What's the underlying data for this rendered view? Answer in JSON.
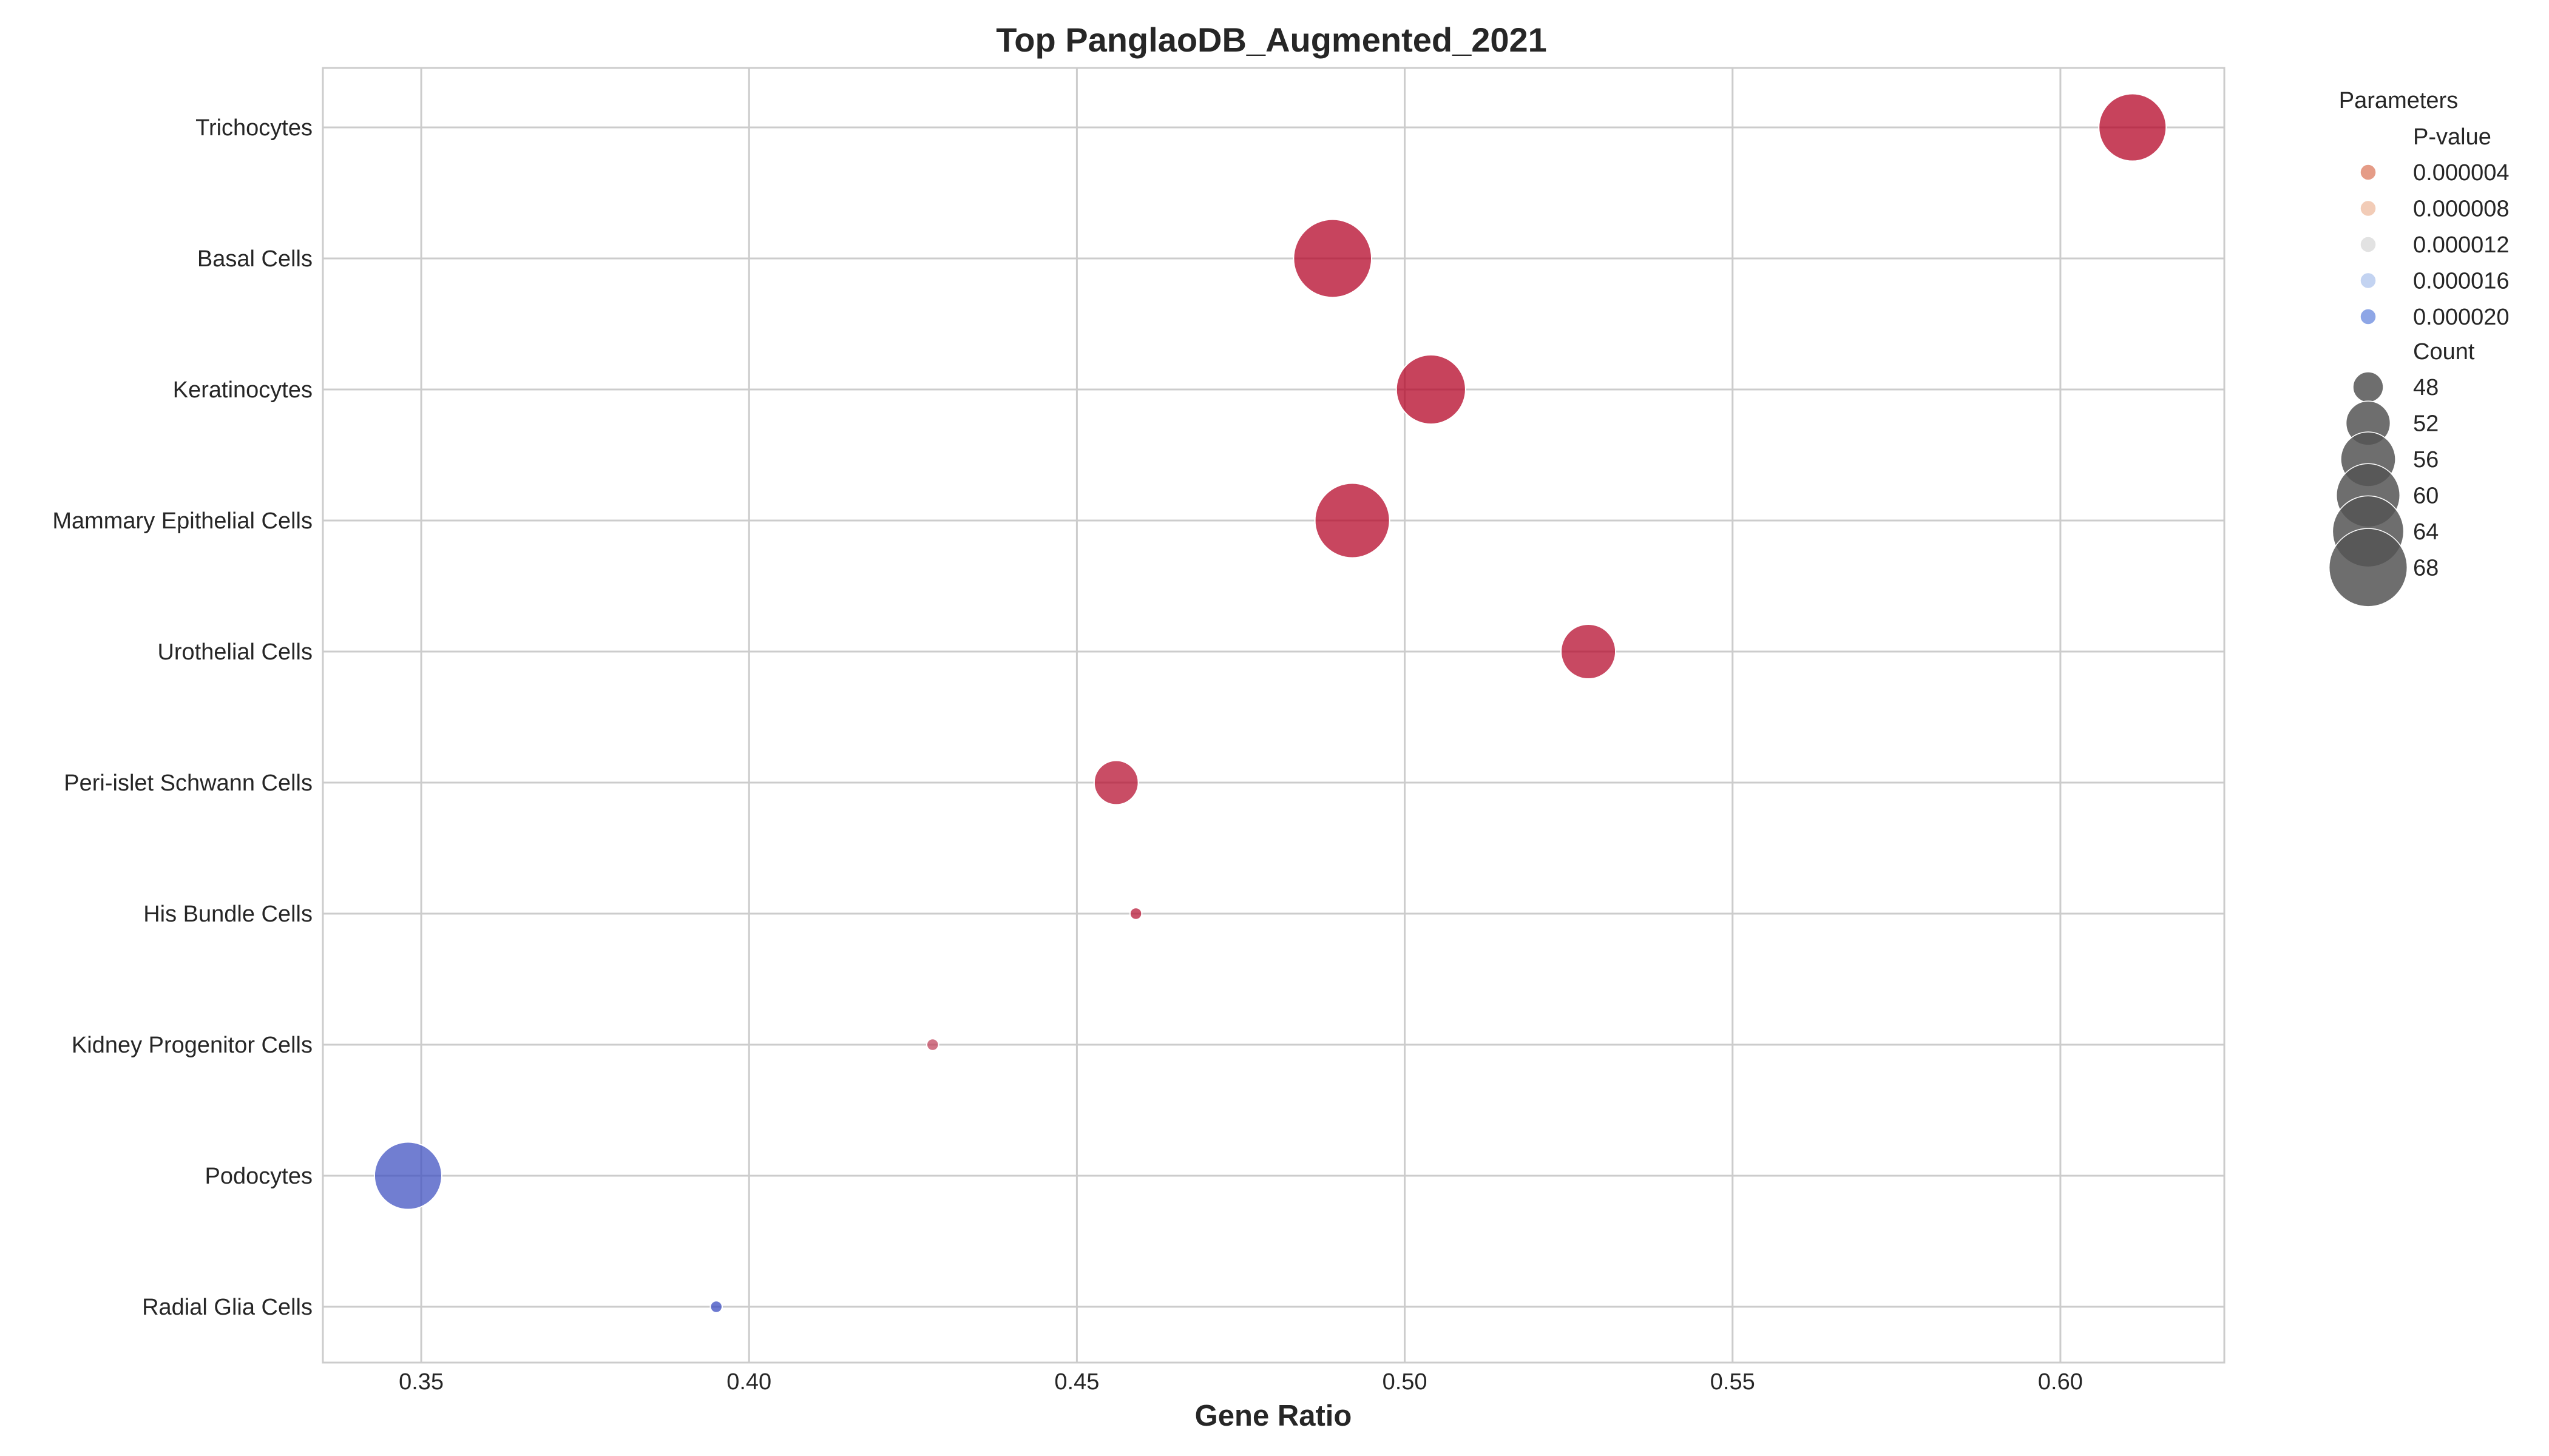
{
  "chart_data": {
    "type": "scatter",
    "title": "Top PanglaoDB_Augmented_2021",
    "xlabel": "Gene Ratio",
    "ylabel": "",
    "xlim": [
      0.335,
      0.625
    ],
    "xticks": [
      0.35,
      0.4,
      0.45,
      0.5,
      0.55,
      0.6
    ],
    "xtick_labels": [
      "0.35",
      "0.40",
      "0.45",
      "0.50",
      "0.55",
      "0.60"
    ],
    "categories": [
      "Trichocytes",
      "Basal Cells",
      "Keratinocytes",
      "Mammary Epithelial Cells",
      "Urothelial Cells",
      "Peri-islet Schwann Cells",
      "His Bundle Cells",
      "Kidney Progenitor Cells",
      "Podocytes",
      "Radial Glia Cells"
    ],
    "points": [
      {
        "category": "Trichocytes",
        "gene_ratio": 0.611,
        "count": 62,
        "pvalue": 1e-07
      },
      {
        "category": "Basal Cells",
        "gene_ratio": 0.489,
        "count": 68,
        "pvalue": 2e-07
      },
      {
        "category": "Keratinocytes",
        "gene_ratio": 0.504,
        "count": 63,
        "pvalue": 1e-07
      },
      {
        "category": "Mammary Epithelial Cells",
        "gene_ratio": 0.492,
        "count": 66,
        "pvalue": 3e-07
      },
      {
        "category": "Urothelial Cells",
        "gene_ratio": 0.528,
        "count": 56,
        "pvalue": 5e-07
      },
      {
        "category": "Peri-islet Schwann Cells",
        "gene_ratio": 0.456,
        "count": 52,
        "pvalue": 8e-07
      },
      {
        "category": "His Bundle Cells",
        "gene_ratio": 0.459,
        "count": 45,
        "pvalue": 1.2e-06
      },
      {
        "category": "Kidney Progenitor Cells",
        "gene_ratio": 0.428,
        "count": 45,
        "pvalue": 3.5e-06
      },
      {
        "category": "Podocytes",
        "gene_ratio": 0.348,
        "count": 62,
        "pvalue": 2.15e-05
      },
      {
        "category": "Radial Glia Cells",
        "gene_ratio": 0.395,
        "count": 45,
        "pvalue": 2.2e-05
      }
    ],
    "grid": true,
    "legend": {
      "placement": "right",
      "title": "Parameters",
      "pvalue_title": "P-value",
      "pvalue_entries": [
        {
          "label": "0.000004",
          "color": "#e08b72"
        },
        {
          "label": "0.000008",
          "color": "#f0c3aa"
        },
        {
          "label": "0.000012",
          "color": "#dddddd"
        },
        {
          "label": "0.000016",
          "color": "#b9cbee"
        },
        {
          "label": "0.000020",
          "color": "#7a97e2"
        }
      ],
      "count_title": "Count",
      "count_entries": [
        {
          "label": "48",
          "value": 48
        },
        {
          "label": "52",
          "value": 52
        },
        {
          "label": "56",
          "value": 56
        },
        {
          "label": "60",
          "value": 60
        },
        {
          "label": "64",
          "value": 64
        },
        {
          "label": "68",
          "value": 68
        }
      ],
      "count_marker_color": "#555555"
    },
    "colormap": {
      "name": "coolwarm_r",
      "low_color": "#b40426",
      "mid_color": "#dddddd",
      "high_color": "#3b4cc0",
      "pvalue_range": [
        1e-07,
        2.2e-05
      ]
    }
  }
}
